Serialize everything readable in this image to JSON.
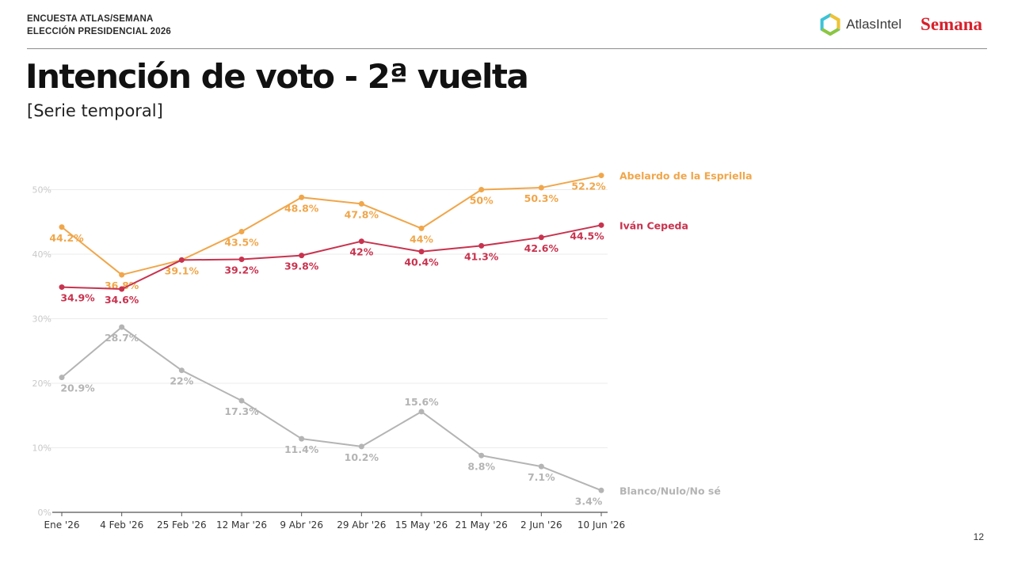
{
  "header": {
    "line1": "ENCUESTA ATLAS/SEMANA",
    "line2": "ELECCIÓN PRESIDENCIAL 2026"
  },
  "logos": {
    "atlas": "AtlasIntel",
    "semana": "Semana"
  },
  "title": "Intención de voto - 2ª vuelta",
  "subtitle": "[Serie temporal]",
  "page_number": "12",
  "chart_data": {
    "type": "line",
    "categories": [
      "Ene '26",
      "4 Feb '26",
      "25 Feb '26",
      "12 Mar '26",
      "9 Abr '26",
      "29 Abr '26",
      "15 May '26",
      "21 May '26",
      "2 Jun '26",
      "10 Jun '26"
    ],
    "ylim": [
      0,
      55
    ],
    "yticks": [
      0,
      10,
      20,
      30,
      40,
      50
    ],
    "ytick_labels": [
      "0%",
      "10%",
      "20%",
      "30%",
      "40%",
      "50%"
    ],
    "grid": true,
    "series": [
      {
        "name": "Abelardo de la Espriella",
        "color": "#f0a64a",
        "values": [
          44.2,
          36.8,
          39.1,
          43.5,
          48.8,
          47.8,
          44,
          50,
          50.3,
          52.2
        ],
        "labels": [
          "44.2%",
          "36.8%",
          "39.1%",
          "43.5%",
          "48.8%",
          "47.8%",
          "44%",
          "50%",
          "50.3%",
          "52.2%"
        ]
      },
      {
        "name": "Iván Cepeda",
        "color": "#c8334f",
        "values": [
          34.9,
          34.6,
          39.1,
          39.2,
          39.8,
          42,
          40.4,
          41.3,
          42.6,
          44.5
        ],
        "labels": [
          "34.9%",
          "34.6%",
          "",
          "39.2%",
          "39.8%",
          "42%",
          "40.4%",
          "41.3%",
          "42.6%",
          "44.5%"
        ]
      },
      {
        "name": "Blanco/Nulo/No sé",
        "color": "#b4b4b4",
        "values": [
          20.9,
          28.7,
          22,
          17.3,
          11.4,
          10.2,
          15.6,
          8.8,
          7.1,
          3.4
        ],
        "labels": [
          "20.9%",
          "28.7%",
          "22%",
          "17.3%",
          "11.4%",
          "10.2%",
          "15.6%",
          "8.8%",
          "7.1%",
          "3.4%"
        ]
      }
    ]
  }
}
